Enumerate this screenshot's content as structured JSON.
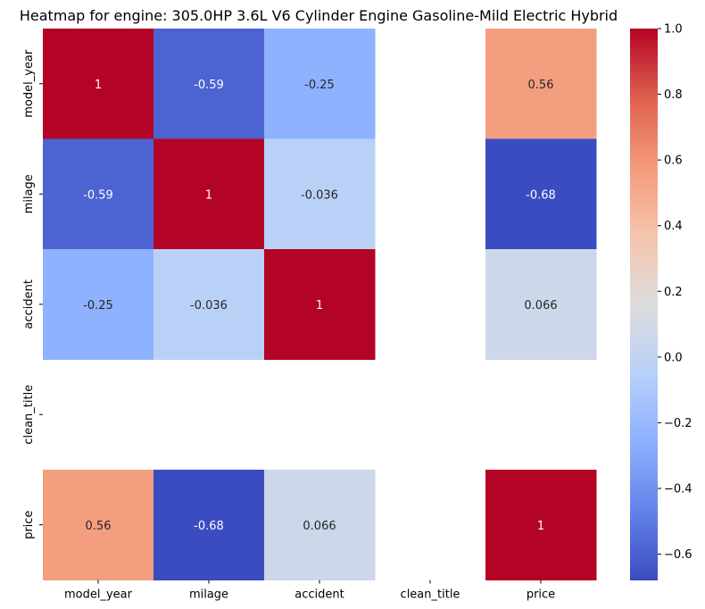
{
  "chart_data": {
    "type": "heatmap",
    "title": "Heatmap for engine: 305.0HP 3.6L V6 Cylinder Engine Gasoline-Mild Electric Hybrid",
    "x_labels": [
      "model_year",
      "milage",
      "accident",
      "clean_title",
      "price"
    ],
    "y_labels": [
      "model_year",
      "milage",
      "accident",
      "clean_title",
      "price"
    ],
    "matrix": [
      [
        1,
        -0.59,
        -0.25,
        null,
        0.56
      ],
      [
        -0.59,
        1,
        -0.036,
        null,
        -0.68
      ],
      [
        -0.25,
        -0.036,
        1,
        null,
        0.066
      ],
      [
        null,
        null,
        null,
        null,
        null
      ],
      [
        0.56,
        -0.68,
        0.066,
        null,
        1
      ]
    ],
    "annotations": [
      [
        "1",
        "-0.59",
        "-0.25",
        "",
        "0.56"
      ],
      [
        "-0.59",
        "1",
        "-0.036",
        "",
        "-0.68"
      ],
      [
        "-0.25",
        "-0.036",
        "1",
        "",
        "0.066"
      ],
      [
        "",
        "",
        "",
        "",
        ""
      ],
      [
        "0.56",
        "-0.68",
        "0.066",
        "",
        "1"
      ]
    ],
    "colormap": "coolwarm",
    "vmin": -0.68,
    "vmax": 1,
    "colorbar_ticks": [
      1.0,
      0.8,
      0.6,
      0.4,
      0.2,
      0.0,
      -0.2,
      -0.4,
      -0.6
    ],
    "colorbar_tick_labels": [
      "1.0",
      "0.8",
      "0.6",
      "0.4",
      "0.2",
      "0.0",
      "−0.2",
      "−0.4",
      "−0.6"
    ],
    "colors": {
      "low": "#3b4cc0",
      "mid": "#dddddd",
      "high": "#b40426"
    }
  }
}
